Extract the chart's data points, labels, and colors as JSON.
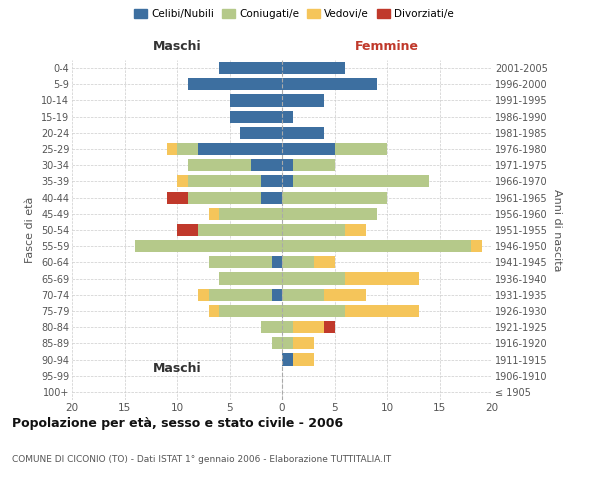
{
  "age_groups": [
    "100+",
    "95-99",
    "90-94",
    "85-89",
    "80-84",
    "75-79",
    "70-74",
    "65-69",
    "60-64",
    "55-59",
    "50-54",
    "45-49",
    "40-44",
    "35-39",
    "30-34",
    "25-29",
    "20-24",
    "15-19",
    "10-14",
    "5-9",
    "0-4"
  ],
  "birth_years": [
    "≤ 1905",
    "1906-1910",
    "1911-1915",
    "1916-1920",
    "1921-1925",
    "1926-1930",
    "1931-1935",
    "1936-1940",
    "1941-1945",
    "1946-1950",
    "1951-1955",
    "1956-1960",
    "1961-1965",
    "1966-1970",
    "1971-1975",
    "1976-1980",
    "1981-1985",
    "1986-1990",
    "1991-1995",
    "1996-2000",
    "2001-2005"
  ],
  "maschi": {
    "celibi": [
      0,
      0,
      0,
      0,
      0,
      0,
      1,
      0,
      1,
      0,
      0,
      0,
      2,
      2,
      3,
      8,
      4,
      5,
      5,
      9,
      6
    ],
    "coniugati": [
      0,
      0,
      0,
      1,
      2,
      6,
      6,
      6,
      6,
      14,
      8,
      6,
      7,
      7,
      6,
      2,
      0,
      0,
      0,
      0,
      0
    ],
    "vedovi": [
      0,
      0,
      0,
      0,
      0,
      1,
      1,
      0,
      0,
      0,
      0,
      1,
      0,
      1,
      0,
      1,
      0,
      0,
      0,
      0,
      0
    ],
    "divorziati": [
      0,
      0,
      0,
      0,
      0,
      0,
      0,
      0,
      0,
      0,
      2,
      0,
      2,
      0,
      0,
      0,
      0,
      0,
      0,
      0,
      0
    ]
  },
  "femmine": {
    "nubili": [
      0,
      0,
      1,
      0,
      0,
      0,
      0,
      0,
      0,
      0,
      0,
      0,
      0,
      1,
      1,
      5,
      4,
      1,
      4,
      9,
      6
    ],
    "coniugate": [
      0,
      0,
      0,
      1,
      1,
      6,
      4,
      6,
      3,
      18,
      6,
      9,
      10,
      13,
      4,
      5,
      0,
      0,
      0,
      0,
      0
    ],
    "vedove": [
      0,
      0,
      2,
      2,
      3,
      7,
      4,
      7,
      2,
      1,
      2,
      0,
      0,
      0,
      0,
      0,
      0,
      0,
      0,
      0,
      0
    ],
    "divorziate": [
      0,
      0,
      0,
      0,
      1,
      0,
      0,
      0,
      0,
      0,
      0,
      0,
      0,
      0,
      0,
      0,
      0,
      0,
      0,
      0,
      0
    ]
  },
  "colors": {
    "celibi": "#3d6fa0",
    "coniugati": "#b5c98a",
    "vedovi": "#f5c55a",
    "divorziati": "#c0392b"
  },
  "xlim": 20,
  "title": "Popolazione per età, sesso e stato civile - 2006",
  "subtitle": "COMUNE DI CICONIO (TO) - Dati ISTAT 1° gennaio 2006 - Elaborazione TUTTITALIA.IT",
  "ylabel_left": "Fasce di età",
  "ylabel_right": "Anni di nascita",
  "legend_labels": [
    "Celibi/Nubili",
    "Coniugati/e",
    "Vedovi/e",
    "Divorziati/e"
  ],
  "header_maschi": "Maschi",
  "header_femmine": "Femmine",
  "background_color": "#ffffff"
}
